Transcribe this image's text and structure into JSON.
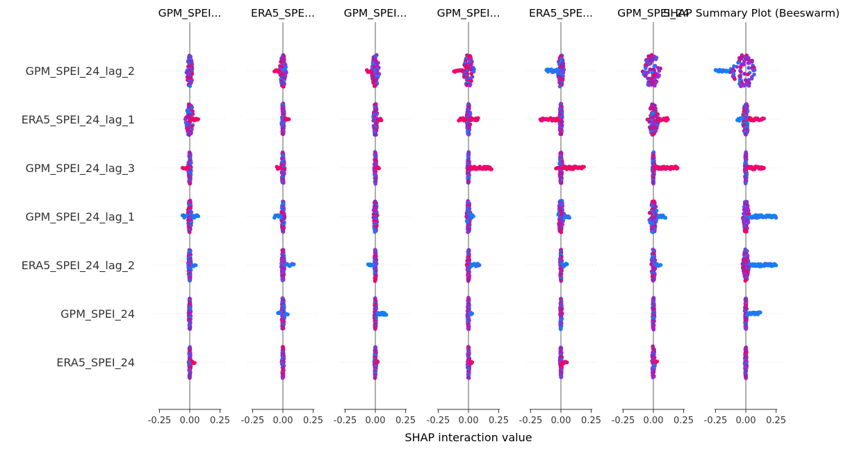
{
  "chart_data": {
    "type": "scatter",
    "title": "SHAP Summary Plot (Beeswarm)",
    "xlabel": "SHAP interaction value",
    "xlim": [
      -0.32,
      0.32
    ],
    "xticks": [
      -0.25,
      0.0,
      0.25
    ],
    "xtick_labels": [
      "-0.25",
      "0.00",
      "0.25"
    ],
    "features": [
      "GPM_SPEI_24_lag_2",
      "ERA5_SPEI_24_lag_1",
      "GPM_SPEI_24_lag_3",
      "GPM_SPEI_24_lag_1",
      "ERA5_SPEI_24_lag_2",
      "GPM_SPEI_24",
      "ERA5_SPEI_24"
    ],
    "panel_titles": [
      "GPM_SPEI...",
      "ERA5_SPE...",
      "GPM_SPEI...",
      "GPM_SPEI...",
      "ERA5_SPE...",
      "GPM_SPEI_24",
      ""
    ],
    "colors": {
      "low": "#008afb",
      "high": "#ff0052",
      "zero_line": "#999999",
      "gridline": "#dddddd"
    },
    "grid": "dotted horizontal per feature",
    "legend": "none",
    "panels": [
      {
        "rows": [
          {
            "spread": [
              -0.03,
              0.03
            ],
            "tails": []
          },
          {
            "spread": [
              -0.04,
              0.04
            ],
            "tails": [
              {
                "from": 0.03,
                "to": 0.07,
                "value": "high"
              }
            ]
          },
          {
            "spread": [
              -0.015,
              0.015
            ],
            "tails": [
              {
                "from": -0.06,
                "to": -0.02,
                "value": "high"
              }
            ]
          },
          {
            "spread": [
              -0.02,
              0.02
            ],
            "tails": [
              {
                "from": 0.03,
                "to": 0.07,
                "value": "low"
              },
              {
                "from": -0.06,
                "to": -0.03,
                "value": "low"
              }
            ]
          },
          {
            "spread": [
              -0.015,
              0.015
            ],
            "tails": [
              {
                "from": 0.02,
                "to": 0.05,
                "value": "low"
              }
            ]
          },
          {
            "spread": [
              -0.01,
              0.01
            ],
            "tails": []
          },
          {
            "spread": [
              -0.01,
              0.01
            ],
            "tails": [
              {
                "from": 0.02,
                "to": 0.04,
                "value": "high"
              }
            ]
          }
        ]
      },
      {
        "rows": [
          {
            "spread": [
              -0.03,
              0.03
            ],
            "tails": [
              {
                "from": -0.07,
                "to": -0.03,
                "value": "high"
              }
            ]
          },
          {
            "spread": [
              -0.015,
              0.015
            ],
            "tails": [
              {
                "from": 0.02,
                "to": 0.05,
                "value": "high"
              }
            ]
          },
          {
            "spread": [
              -0.015,
              0.015
            ],
            "tails": [
              {
                "from": -0.05,
                "to": -0.02,
                "value": "high"
              }
            ]
          },
          {
            "spread": [
              -0.015,
              0.015
            ],
            "tails": [
              {
                "from": -0.07,
                "to": -0.02,
                "value": "low"
              }
            ]
          },
          {
            "spread": [
              -0.015,
              0.015
            ],
            "tails": [
              {
                "from": 0.02,
                "to": 0.09,
                "value": "low"
              }
            ]
          },
          {
            "spread": [
              -0.015,
              0.015
            ],
            "tails": [
              {
                "from": -0.04,
                "to": -0.02,
                "value": "low"
              },
              {
                "from": 0.02,
                "to": 0.04,
                "value": "low"
              }
            ]
          },
          {
            "spread": [
              -0.01,
              0.01
            ],
            "tails": []
          }
        ]
      },
      {
        "rows": [
          {
            "spread": [
              -0.04,
              0.04
            ],
            "tails": [
              {
                "from": -0.07,
                "to": -0.03,
                "value": "high"
              }
            ]
          },
          {
            "spread": [
              -0.02,
              0.02
            ],
            "tails": [
              {
                "from": 0.02,
                "to": 0.05,
                "value": "high"
              }
            ]
          },
          {
            "spread": [
              -0.01,
              0.01
            ],
            "tails": [
              {
                "from": 0.01,
                "to": 0.03,
                "value": "high"
              }
            ]
          },
          {
            "spread": [
              -0.02,
              0.02
            ],
            "tails": []
          },
          {
            "spread": [
              -0.01,
              0.01
            ],
            "tails": [
              {
                "from": -0.06,
                "to": -0.02,
                "value": "low"
              }
            ]
          },
          {
            "spread": [
              -0.01,
              0.01
            ],
            "tails": [
              {
                "from": 0.02,
                "to": 0.09,
                "value": "low"
              }
            ]
          },
          {
            "spread": [
              -0.01,
              0.01
            ],
            "tails": [
              {
                "from": 0.01,
                "to": 0.02,
                "value": "high"
              }
            ]
          }
        ]
      },
      {
        "rows": [
          {
            "spread": [
              -0.05,
              0.05
            ],
            "tails": [
              {
                "from": -0.12,
                "to": -0.05,
                "value": "high"
              }
            ]
          },
          {
            "spread": [
              -0.02,
              0.02
            ],
            "tails": [
              {
                "from": -0.08,
                "to": -0.03,
                "value": "high"
              },
              {
                "from": 0.02,
                "to": 0.08,
                "value": "high"
              }
            ]
          },
          {
            "spread": [
              -0.01,
              0.01
            ],
            "tails": [
              {
                "from": 0.01,
                "to": 0.19,
                "value": "high"
              }
            ]
          },
          {
            "spread": [
              -0.02,
              0.02
            ],
            "tails": [
              {
                "from": 0.02,
                "to": 0.04,
                "value": "low"
              }
            ]
          },
          {
            "spread": [
              -0.015,
              0.015
            ],
            "tails": [
              {
                "from": 0.02,
                "to": 0.09,
                "value": "low"
              }
            ]
          },
          {
            "spread": [
              -0.01,
              0.01
            ],
            "tails": [
              {
                "from": 0.01,
                "to": 0.03,
                "value": "low"
              }
            ]
          },
          {
            "spread": [
              -0.01,
              0.01
            ],
            "tails": [
              {
                "from": 0.01,
                "to": 0.03,
                "value": "high"
              }
            ]
          }
        ]
      },
      {
        "rows": [
          {
            "spread": [
              -0.03,
              0.03
            ],
            "tails": [
              {
                "from": -0.12,
                "to": -0.03,
                "value": "low"
              }
            ]
          },
          {
            "spread": [
              -0.015,
              0.015
            ],
            "tails": [
              {
                "from": -0.17,
                "to": -0.02,
                "value": "high"
              }
            ]
          },
          {
            "spread": [
              -0.015,
              0.015
            ],
            "tails": [
              {
                "from": 0.01,
                "to": 0.19,
                "value": "high"
              },
              {
                "from": -0.04,
                "to": -0.02,
                "value": "high"
              }
            ]
          },
          {
            "spread": [
              -0.03,
              0.03
            ],
            "tails": [
              {
                "from": 0.03,
                "to": 0.07,
                "value": "low"
              }
            ]
          },
          {
            "spread": [
              -0.01,
              0.01
            ],
            "tails": [
              {
                "from": 0.01,
                "to": 0.05,
                "value": "low"
              }
            ]
          },
          {
            "spread": [
              -0.01,
              0.01
            ],
            "tails": []
          },
          {
            "spread": [
              -0.01,
              0.01
            ],
            "tails": [
              {
                "from": 0.01,
                "to": 0.05,
                "value": "high"
              }
            ]
          }
        ]
      },
      {
        "rows": [
          {
            "spread": [
              -0.12,
              0.07
            ],
            "tails": []
          },
          {
            "spread": [
              -0.05,
              0.05
            ],
            "tails": [
              {
                "from": 0.04,
                "to": 0.12,
                "value": "high"
              }
            ]
          },
          {
            "spread": [
              -0.01,
              0.01
            ],
            "tails": [
              {
                "from": 0.01,
                "to": 0.2,
                "value": "high"
              }
            ]
          },
          {
            "spread": [
              -0.04,
              0.04
            ],
            "tails": [
              {
                "from": 0.04,
                "to": 0.1,
                "value": "low"
              }
            ]
          },
          {
            "spread": [
              -0.02,
              0.02
            ],
            "tails": [
              {
                "from": 0.02,
                "to": 0.06,
                "value": "low"
              }
            ]
          },
          {
            "spread": [
              -0.01,
              0.01
            ],
            "tails": []
          },
          {
            "spread": [
              -0.015,
              0.015
            ],
            "tails": [
              {
                "from": 0.01,
                "to": 0.03,
                "value": "high"
              }
            ]
          }
        ]
      },
      {
        "rows": [
          {
            "spread": [
              -0.15,
              0.1
            ],
            "tails": [
              {
                "from": -0.25,
                "to": -0.15,
                "value": "low"
              }
            ]
          },
          {
            "spread": [
              -0.03,
              0.03
            ],
            "tails": [
              {
                "from": 0.03,
                "to": 0.15,
                "value": "high"
              },
              {
                "from": -0.07,
                "to": -0.03,
                "value": "low"
              }
            ]
          },
          {
            "spread": [
              -0.01,
              0.01
            ],
            "tails": [
              {
                "from": 0.02,
                "to": 0.15,
                "value": "high"
              }
            ]
          },
          {
            "spread": [
              -0.03,
              0.03
            ],
            "tails": [
              {
                "from": 0.03,
                "to": 0.25,
                "value": "low"
              }
            ]
          },
          {
            "spread": [
              -0.03,
              0.03
            ],
            "tails": [
              {
                "from": 0.03,
                "to": 0.25,
                "value": "low"
              }
            ]
          },
          {
            "spread": [
              -0.01,
              0.01
            ],
            "tails": [
              {
                "from": 0.01,
                "to": 0.12,
                "value": "low"
              }
            ]
          },
          {
            "spread": [
              -0.01,
              0.01
            ],
            "tails": []
          }
        ]
      }
    ]
  }
}
